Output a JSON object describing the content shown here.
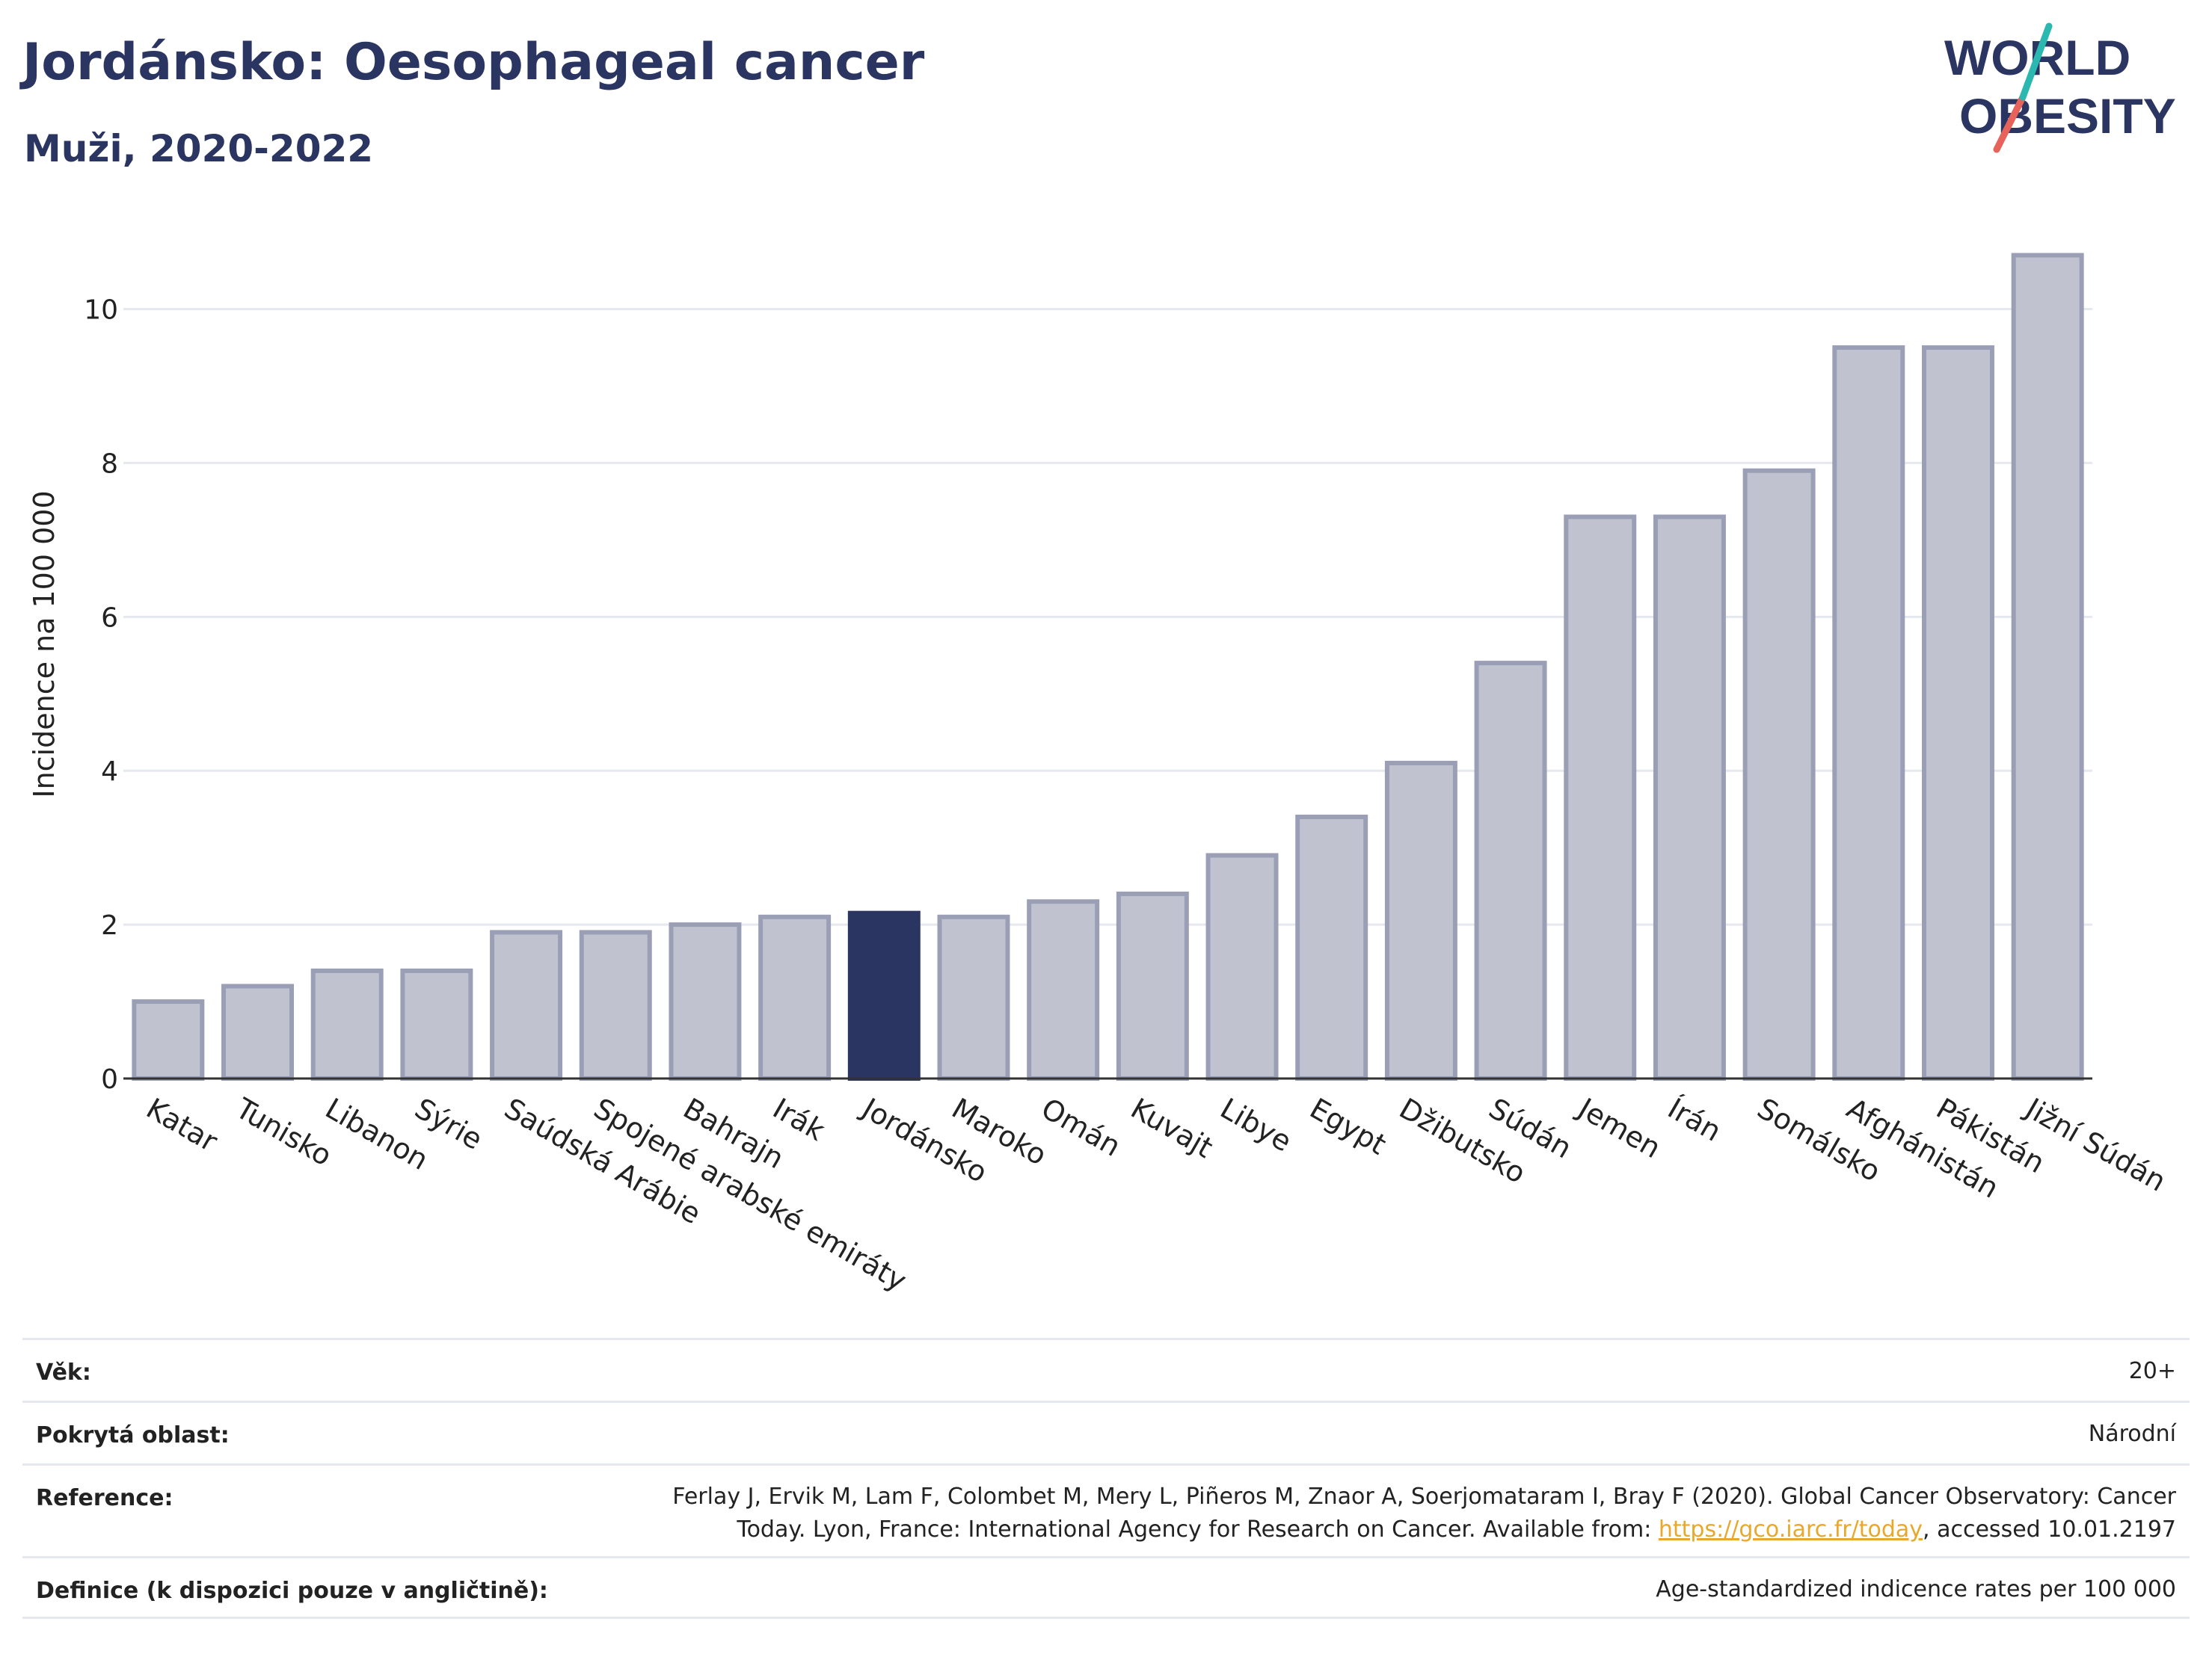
{
  "title": "Jordánsko: Oesophageal cancer",
  "subtitle": "Muži, 2020-2022",
  "logo": {
    "line1": "WORLD",
    "line2": "OBESITY",
    "accent_colors": [
      "#2bb8b0",
      "#e6625a"
    ]
  },
  "chart_data": {
    "type": "bar",
    "categories": [
      "Katar",
      "Tunisko",
      "Libanon",
      "Sýrie",
      "Saúdská Arábie",
      "Spojené arabské emiráty",
      "Bahrajn",
      "Irák",
      "Jordánsko",
      "Maroko",
      "Omán",
      "Kuvajt",
      "Libye",
      "Egypt",
      "Džibutsko",
      "Súdán",
      "Jemen",
      "Írán",
      "Somálsko",
      "Afghánistán",
      "Pákistán",
      "Jižní Súdán"
    ],
    "values": [
      1.0,
      1.2,
      1.4,
      1.4,
      1.9,
      1.9,
      2.0,
      2.1,
      2.15,
      2.1,
      2.3,
      2.4,
      2.9,
      3.4,
      4.1,
      5.4,
      7.3,
      7.3,
      7.9,
      9.5,
      9.5,
      10.7
    ],
    "highlight": "Jordánsko",
    "ylabel": "Incidence na 100 000",
    "xlabel": "",
    "ylim": [
      0,
      11.2
    ],
    "yticks": [
      0,
      2,
      4,
      6,
      8,
      10
    ],
    "grid": true,
    "colors": {
      "bar": "#c0c3cf",
      "bar_edge": "#9a9fb6",
      "highlight": "#2b3561",
      "grid": "#e6e8ef"
    }
  },
  "meta": [
    {
      "label": "Věk:",
      "value": "20+"
    },
    {
      "label": "Pokrytá oblast:",
      "value": "Národní"
    },
    {
      "label": "Reference:",
      "value_line1": "Ferlay J, Ervik M, Lam F, Colombet M, Mery L, Piñeros M, Znaor A, Soerjomataram I, Bray F (2020). Global Cancer Observatory: Cancer",
      "value_line2_before": "Today. Lyon, France: International Agency for Research on Cancer. Available from: ",
      "link": "https://gco.iarc.fr/today",
      "value_line2_after": ", accessed 10.01.2197"
    },
    {
      "label": "Definice (k dispozici pouze v angličtině):",
      "value": "Age-standardized indicence rates per 100 000"
    }
  ]
}
